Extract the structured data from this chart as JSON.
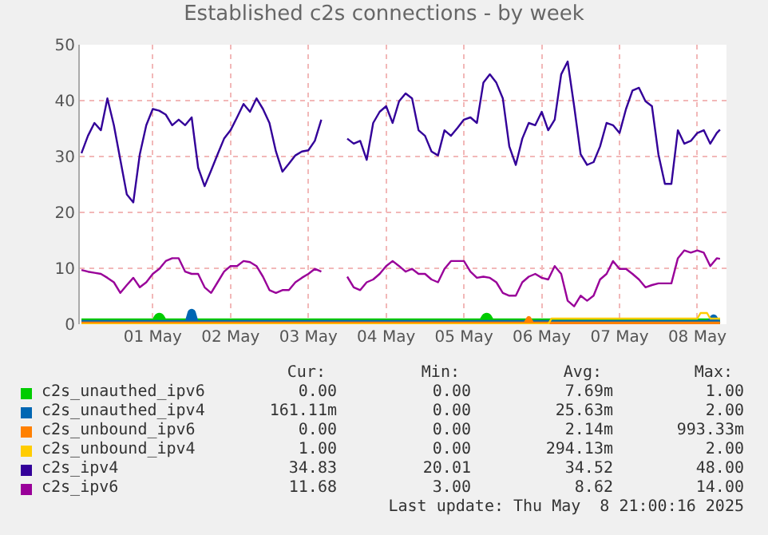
{
  "chart_data": {
    "type": "line",
    "title": "Established c2s connections - by week",
    "x": [
      "2025-04-30T14:00",
      "2025-04-30T16:00",
      "2025-04-30T18:00",
      "2025-04-30T20:00",
      "2025-04-30T22:00",
      "2025-05-01T00:00",
      "2025-05-01T02:00",
      "2025-05-01T04:00",
      "2025-05-01T06:00",
      "2025-05-01T08:00",
      "2025-05-01T10:00",
      "2025-05-01T12:00",
      "2025-05-01T14:00",
      "2025-05-01T16:00",
      "2025-05-01T18:00",
      "2025-05-01T20:00",
      "2025-05-01T22:00",
      "2025-05-02T00:00",
      "2025-05-02T02:00",
      "2025-05-02T04:00",
      "2025-05-02T06:00",
      "2025-05-02T08:00",
      "2025-05-02T10:00",
      "2025-05-02T12:00",
      "2025-05-02T14:00",
      "2025-05-02T16:00",
      "2025-05-02T18:00",
      "2025-05-02T20:00",
      "2025-05-02T22:00",
      "2025-05-03T00:00",
      "2025-05-03T02:00",
      "2025-05-03T04:00",
      "2025-05-03T06:00",
      "2025-05-03T08:00",
      "2025-05-03T10:00",
      "2025-05-03T12:00",
      "2025-05-03T14:00",
      "2025-05-03T16:00",
      "2025-05-03T18:00",
      "2025-05-03T20:00",
      "2025-05-03T22:00",
      "2025-05-04T00:00",
      "2025-05-04T02:00",
      "2025-05-04T04:00",
      "2025-05-04T06:00",
      "2025-05-04T08:00",
      "2025-05-04T10:00",
      "2025-05-04T12:00",
      "2025-05-04T14:00",
      "2025-05-04T16:00",
      "2025-05-04T18:00",
      "2025-05-04T20:00",
      "2025-05-04T22:00",
      "2025-05-05T00:00",
      "2025-05-05T02:00",
      "2025-05-05T04:00",
      "2025-05-05T06:00",
      "2025-05-05T08:00",
      "2025-05-05T10:00",
      "2025-05-05T12:00",
      "2025-05-05T14:00",
      "2025-05-05T16:00",
      "2025-05-05T18:00",
      "2025-05-05T20:00",
      "2025-05-05T22:00",
      "2025-05-06T00:00",
      "2025-05-06T02:00",
      "2025-05-06T04:00",
      "2025-05-06T06:00",
      "2025-05-06T08:00",
      "2025-05-06T10:00",
      "2025-05-06T12:00",
      "2025-05-06T14:00",
      "2025-05-06T16:00",
      "2025-05-06T18:00",
      "2025-05-06T20:00",
      "2025-05-06T22:00",
      "2025-05-07T00:00",
      "2025-05-07T02:00",
      "2025-05-07T04:00",
      "2025-05-07T06:00",
      "2025-05-07T08:00",
      "2025-05-07T10:00",
      "2025-05-07T12:00",
      "2025-05-07T14:00",
      "2025-05-07T16:00",
      "2025-05-07T18:00",
      "2025-05-07T20:00",
      "2025-05-07T22:00",
      "2025-05-08T00:00",
      "2025-05-08T02:00",
      "2025-05-08T04:00",
      "2025-05-08T06:00",
      "2025-05-08T08:00",
      "2025-05-08T10:00",
      "2025-05-08T12:00",
      "2025-05-08T14:00",
      "2025-05-08T16:00",
      "2025-05-08T18:00",
      "2025-05-08T19:00"
    ],
    "series": [
      {
        "name": "c2s_unauthed_ipv6",
        "color": "#00cc00",
        "x": [
          "2025-04-30T14:00",
          "2025-05-01T13:00",
          "2025-05-01T14:00",
          "2025-05-01T15:00",
          "2025-05-05T18:00",
          "2025-05-05T19:00",
          "2025-05-05T20:00",
          "2025-05-08T19:00"
        ],
        "values": [
          0,
          0,
          1,
          0,
          0,
          1,
          0,
          0
        ]
      },
      {
        "name": "c2s_unauthed_ipv4",
        "color": "#0066b3",
        "x": [
          "2025-04-30T14:00",
          "2025-05-01T23:00",
          "2025-05-02T00:00",
          "2025-05-02T01:00",
          "2025-05-08T16:00",
          "2025-05-08T17:00",
          "2025-05-08T18:00",
          "2025-05-08T19:00"
        ],
        "values": [
          0,
          0,
          2,
          0,
          0,
          1,
          0,
          0
        ]
      },
      {
        "name": "c2s_unbound_ipv6",
        "color": "#ff8000",
        "x": [
          "2025-04-30T14:00",
          "2025-05-06T07:00",
          "2025-05-06T08:00",
          "2025-05-06T09:00",
          "2025-05-08T19:00"
        ],
        "values": [
          0,
          0,
          1,
          0,
          0
        ]
      },
      {
        "name": "c2s_unbound_ipv4",
        "color": "#ffcc00",
        "x": [
          "2025-04-30T14:00",
          "2025-05-06T14:00",
          "2025-05-06T15:00",
          "2025-05-08T12:00",
          "2025-05-08T13:00",
          "2025-05-08T15:00",
          "2025-05-08T16:00",
          "2025-05-08T19:00"
        ],
        "values": [
          0,
          0,
          1,
          1,
          2,
          2,
          1,
          1
        ]
      },
      {
        "name": "c2s_ipv4",
        "color": "#330099",
        "values": [
          30.6,
          33.7,
          36,
          34.7,
          40.4,
          35.6,
          29.4,
          23.2,
          21.8,
          30.4,
          35.6,
          38.5,
          38.2,
          37.5,
          35.6,
          36.6,
          35.6,
          37,
          28,
          24.7,
          27.5,
          30.4,
          33.2,
          34.7,
          37,
          39.4,
          38,
          40.4,
          38.5,
          36,
          30.9,
          27.3,
          28.7,
          30.2,
          30.9,
          31.1,
          32.8,
          36.6,
          null,
          null,
          null,
          33.2,
          32.3,
          32.8,
          29.4,
          36,
          38,
          39,
          36,
          39.9,
          41.3,
          40.4,
          34.7,
          33.7,
          30.9,
          30.2,
          34.7,
          33.7,
          35.1,
          36.6,
          37,
          36,
          43.2,
          44.7,
          43.2,
          40.4,
          31.8,
          28.5,
          33.2,
          36,
          35.6,
          38,
          34.7,
          36.6,
          44.7,
          47,
          39,
          30.4,
          28.5,
          29,
          31.8,
          36,
          35.6,
          34.2,
          38.5,
          41.8,
          42.3,
          39.9,
          39,
          30.4,
          25.1,
          25.1,
          34.7,
          32.3,
          32.8,
          34.2,
          34.7,
          32.3,
          34.2,
          34.8
        ]
      },
      {
        "name": "c2s_ipv6",
        "color": "#990099",
        "values": [
          9.7,
          9.4,
          9.2,
          9,
          8.3,
          7.5,
          5.6,
          7,
          8.3,
          6.6,
          7.5,
          9,
          9.9,
          11.3,
          11.8,
          11.8,
          9.4,
          9,
          9,
          6.6,
          5.6,
          7.5,
          9.4,
          10.4,
          10.4,
          11.3,
          11.1,
          10.4,
          8.5,
          6.1,
          5.6,
          6.1,
          6.1,
          7.5,
          8.3,
          9,
          9.9,
          9.4,
          null,
          null,
          null,
          8.5,
          6.6,
          6.1,
          7.5,
          8,
          9,
          10.4,
          11.3,
          10.4,
          9.4,
          9.9,
          9,
          9,
          8,
          7.5,
          9.9,
          11.3,
          11.3,
          11.3,
          9.4,
          8.3,
          8.5,
          8.3,
          7.5,
          5.6,
          5.1,
          5.1,
          7.5,
          8.5,
          9,
          8.3,
          8,
          10.4,
          9,
          4.2,
          3.2,
          5.1,
          4.2,
          5.1,
          8,
          9,
          11.3,
          9.9,
          9.9,
          9,
          8,
          6.6,
          7,
          7.3,
          7.3,
          7.3,
          11.8,
          13.2,
          12.8,
          13.2,
          12.8,
          10.4,
          11.8,
          11.7
        ]
      }
    ],
    "xlim": [
      "2025-04-30T13:30",
      "2025-05-08T21:00"
    ],
    "xticks": [
      {
        "value": "2025-05-01T12:00",
        "label": "01 May"
      },
      {
        "value": "2025-05-02T12:00",
        "label": "02 May"
      },
      {
        "value": "2025-05-03T12:00",
        "label": "03 May"
      },
      {
        "value": "2025-05-04T12:00",
        "label": "04 May"
      },
      {
        "value": "2025-05-05T12:00",
        "label": "05 May"
      },
      {
        "value": "2025-05-06T12:00",
        "label": "06 May"
      },
      {
        "value": "2025-05-07T12:00",
        "label": "07 May"
      },
      {
        "value": "2025-05-08T12:00",
        "label": "08 May"
      }
    ],
    "ylim": [
      0,
      50
    ],
    "yticks": [
      0,
      10,
      20,
      30,
      40,
      50
    ],
    "grid": true,
    "legend": "bottom",
    "annotations": [
      "Cur:",
      "Min:",
      "Avg:",
      "Max:",
      "0.00",
      "0.00",
      "7.69m",
      "1.00",
      "161.11m",
      "0.00",
      "25.63m",
      "2.00",
      "0.00",
      "0.00",
      "2.14m",
      "993.33m",
      "1.00",
      "0.00",
      "294.13m",
      "2.00",
      "34.83",
      "20.01",
      "34.52",
      "48.00",
      "11.68",
      "3.00",
      "8.62",
      "14.00",
      "Last update: Thu May  8 21:00:16 2025"
    ]
  }
}
